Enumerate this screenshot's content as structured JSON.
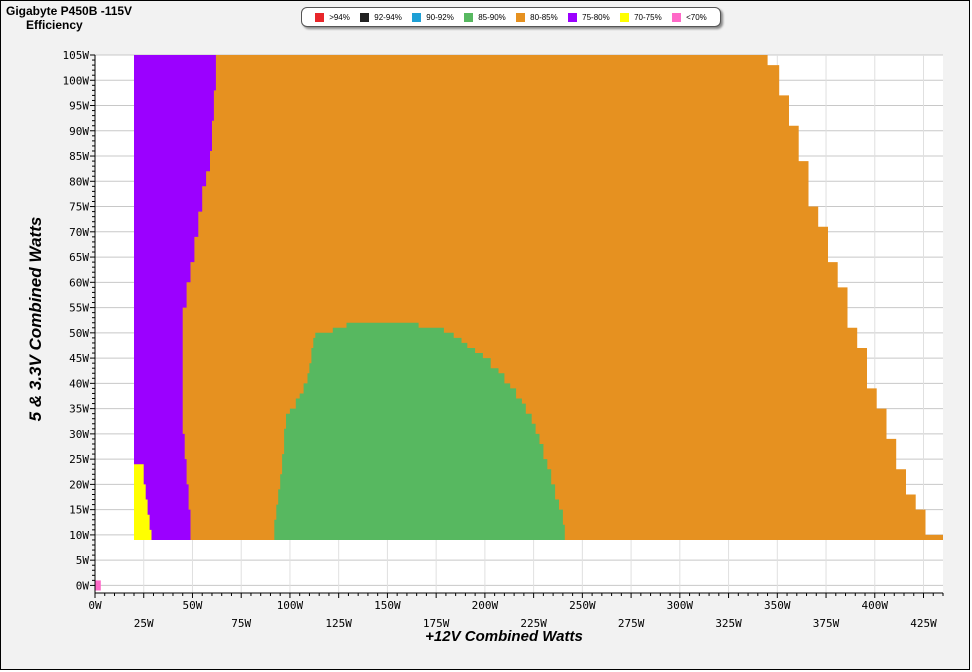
{
  "title": {
    "line1": "Gigabyte P450B -115V",
    "line2": "Efficiency"
  },
  "legend": [
    {
      "label": ">94%",
      "color": "#e8262a"
    },
    {
      "label": "92-94%",
      "color": "#222222"
    },
    {
      "label": "90-92%",
      "color": "#1ea0d6"
    },
    {
      "label": "85-90%",
      "color": "#57b860"
    },
    {
      "label": "80-85%",
      "color": "#e69120"
    },
    {
      "label": "75-80%",
      "color": "#9b00ff"
    },
    {
      "label": "70-75%",
      "color": "#ffff00"
    },
    {
      "label": "<70%",
      "color": "#ff69c8"
    }
  ],
  "chart_data": {
    "type": "heatmap",
    "title": "Gigabyte P450B -115V Efficiency",
    "xlabel": "+12V Combined Watts",
    "ylabel": "5 & 3.3V Combined Watts",
    "xlim": [
      0,
      435
    ],
    "ylim": [
      0,
      105
    ],
    "x_ticks": [
      "0W",
      "25W",
      "50W",
      "75W",
      "100W",
      "125W",
      "150W",
      "175W",
      "200W",
      "225W",
      "250W",
      "275W",
      "300W",
      "325W",
      "350W",
      "375W",
      "400W",
      "425W"
    ],
    "y_ticks": [
      "0W",
      "5W",
      "10W",
      "15W",
      "20W",
      "25W",
      "30W",
      "35W",
      "40W",
      "45W",
      "50W",
      "55W",
      "60W",
      "65W",
      "70W",
      "75W",
      "80W",
      "85W",
      "90W",
      "95W",
      "100W",
      "105W"
    ],
    "grid": true,
    "legend_position": "top",
    "regions": [
      {
        "band": "80-85%",
        "color": "#e69120",
        "profile": [
          [
            20,
            105
          ],
          [
            345,
            105
          ],
          [
            345,
            103
          ],
          [
            351,
            103
          ],
          [
            351,
            97
          ],
          [
            356,
            97
          ],
          [
            356,
            91
          ],
          [
            361,
            91
          ],
          [
            361,
            84
          ],
          [
            366,
            84
          ],
          [
            366,
            75
          ],
          [
            371,
            75
          ],
          [
            371,
            71
          ],
          [
            376,
            71
          ],
          [
            376,
            64
          ],
          [
            381,
            64
          ],
          [
            381,
            59
          ],
          [
            386,
            59
          ],
          [
            386,
            51
          ],
          [
            391,
            51
          ],
          [
            391,
            47
          ],
          [
            396,
            47
          ],
          [
            396,
            39
          ],
          [
            401,
            39
          ],
          [
            401,
            35
          ],
          [
            406,
            35
          ],
          [
            406,
            29
          ],
          [
            411,
            29
          ],
          [
            411,
            23
          ],
          [
            416,
            23
          ],
          [
            416,
            18
          ],
          [
            421,
            18
          ],
          [
            421,
            15
          ],
          [
            426,
            15
          ],
          [
            426,
            10
          ],
          [
            435,
            10
          ],
          [
            435,
            9
          ],
          [
            20,
            9
          ]
        ]
      },
      {
        "band": "75-80%",
        "color": "#9b00ff",
        "profile": [
          [
            20,
            105
          ],
          [
            62,
            105
          ],
          [
            62,
            98
          ],
          [
            61,
            98
          ],
          [
            61,
            92
          ],
          [
            60,
            92
          ],
          [
            60,
            86
          ],
          [
            59,
            86
          ],
          [
            59,
            82
          ],
          [
            57,
            82
          ],
          [
            57,
            79
          ],
          [
            55,
            79
          ],
          [
            55,
            74
          ],
          [
            53,
            74
          ],
          [
            53,
            69
          ],
          [
            51,
            69
          ],
          [
            51,
            64
          ],
          [
            49,
            64
          ],
          [
            49,
            60
          ],
          [
            47,
            60
          ],
          [
            47,
            55
          ],
          [
            45,
            55
          ],
          [
            45,
            30
          ],
          [
            46,
            30
          ],
          [
            46,
            25
          ],
          [
            47,
            25
          ],
          [
            47,
            20
          ],
          [
            48,
            20
          ],
          [
            48,
            15
          ],
          [
            49,
            15
          ],
          [
            49,
            9
          ],
          [
            20,
            9
          ]
        ]
      },
      {
        "band": "70-75%",
        "color": "#ffff00",
        "profile": [
          [
            20,
            24
          ],
          [
            25,
            24
          ],
          [
            25,
            20
          ],
          [
            26,
            20
          ],
          [
            26,
            17
          ],
          [
            27,
            17
          ],
          [
            27,
            14
          ],
          [
            28,
            14
          ],
          [
            28,
            11
          ],
          [
            29,
            11
          ],
          [
            29,
            9
          ],
          [
            20,
            9
          ]
        ]
      },
      {
        "band": "85-90%",
        "color": "#57b860",
        "profile": [
          [
            92,
            9
          ],
          [
            92,
            13
          ],
          [
            93,
            13
          ],
          [
            93,
            16
          ],
          [
            94,
            16
          ],
          [
            94,
            19
          ],
          [
            95,
            19
          ],
          [
            95,
            22
          ],
          [
            96,
            22
          ],
          [
            96,
            26
          ],
          [
            97,
            26
          ],
          [
            97,
            31
          ],
          [
            98,
            31
          ],
          [
            98,
            34
          ],
          [
            100,
            34
          ],
          [
            100,
            35
          ],
          [
            103,
            35
          ],
          [
            103,
            37
          ],
          [
            105,
            37
          ],
          [
            105,
            38
          ],
          [
            107,
            38
          ],
          [
            107,
            40
          ],
          [
            109,
            40
          ],
          [
            109,
            42
          ],
          [
            110,
            42
          ],
          [
            110,
            44
          ],
          [
            111,
            44
          ],
          [
            111,
            47
          ],
          [
            112,
            47
          ],
          [
            112,
            49
          ],
          [
            113,
            49
          ],
          [
            113,
            50
          ],
          [
            122,
            50
          ],
          [
            122,
            51
          ],
          [
            129,
            51
          ],
          [
            129,
            52
          ],
          [
            166,
            52
          ],
          [
            166,
            51
          ],
          [
            179,
            51
          ],
          [
            179,
            50
          ],
          [
            184,
            50
          ],
          [
            184,
            49
          ],
          [
            188,
            49
          ],
          [
            188,
            48
          ],
          [
            191,
            48
          ],
          [
            191,
            47
          ],
          [
            195,
            47
          ],
          [
            195,
            46
          ],
          [
            199,
            46
          ],
          [
            199,
            45
          ],
          [
            203,
            45
          ],
          [
            203,
            43
          ],
          [
            207,
            43
          ],
          [
            207,
            42
          ],
          [
            210,
            42
          ],
          [
            210,
            40
          ],
          [
            213,
            40
          ],
          [
            213,
            39
          ],
          [
            216,
            39
          ],
          [
            216,
            37
          ],
          [
            219,
            37
          ],
          [
            219,
            36
          ],
          [
            221,
            36
          ],
          [
            221,
            34
          ],
          [
            224,
            34
          ],
          [
            224,
            32
          ],
          [
            226,
            32
          ],
          [
            226,
            30
          ],
          [
            228,
            30
          ],
          [
            228,
            28
          ],
          [
            230,
            28
          ],
          [
            230,
            25
          ],
          [
            232,
            25
          ],
          [
            232,
            23
          ],
          [
            234,
            23
          ],
          [
            234,
            20
          ],
          [
            236,
            20
          ],
          [
            236,
            17
          ],
          [
            238,
            17
          ],
          [
            238,
            15
          ],
          [
            240,
            15
          ],
          [
            240,
            12
          ],
          [
            241,
            12
          ],
          [
            241,
            9
          ]
        ]
      },
      {
        "band": "<70%",
        "color": "#ff69c8",
        "profile": [
          [
            0,
            1
          ],
          [
            3,
            1
          ],
          [
            3,
            -1
          ],
          [
            0,
            -1
          ]
        ]
      }
    ]
  }
}
